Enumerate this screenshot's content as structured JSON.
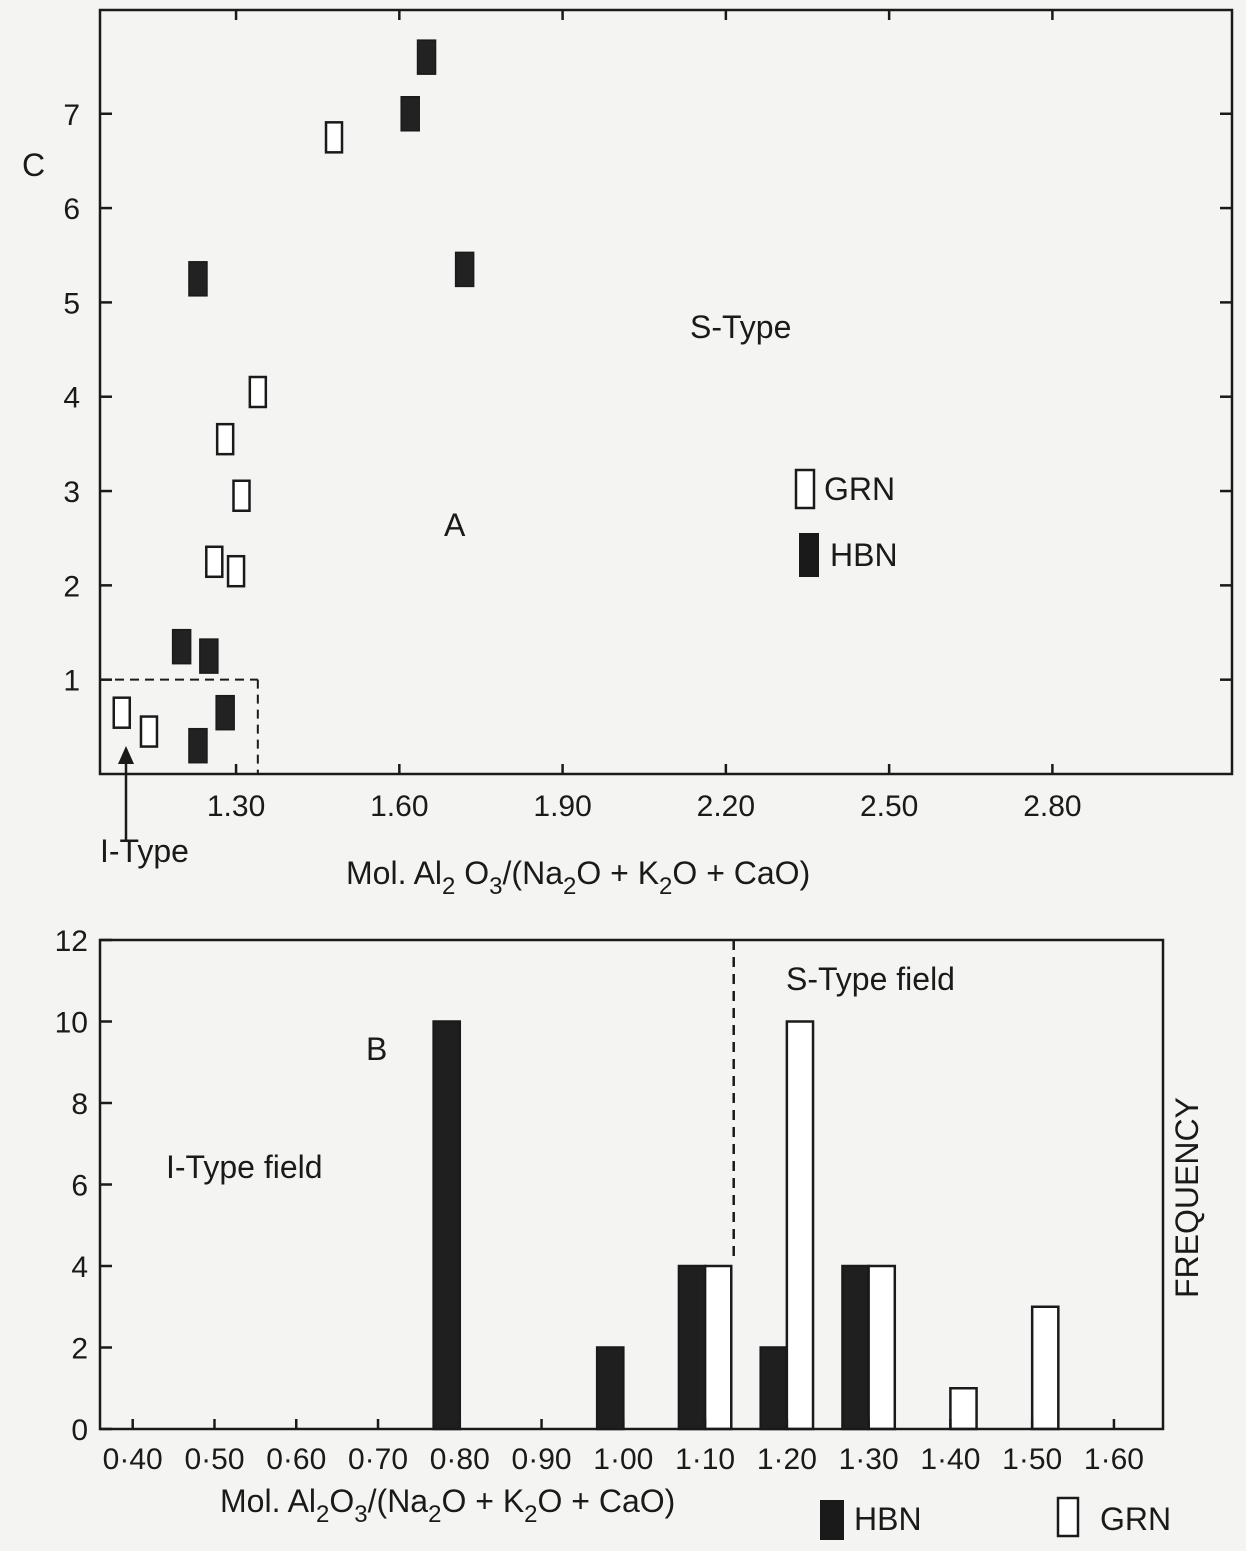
{
  "chart_data": [
    {
      "id": "A",
      "type": "scatter",
      "title": "",
      "panel_label": "A",
      "xlabel": "Mol. Al2O3/(Na2O + K2O + CaO)",
      "xlabel_parts": {
        "a": "Mol. Al",
        "s1": "2",
        "b": " O",
        "s2": "3",
        "c": "/(Na",
        "s3": "2",
        "d": "O + K",
        "s4": "2",
        "e": "O + CaO)"
      },
      "ylabel": "C",
      "xticks": [
        "1.30",
        "1.60",
        "1.90",
        "2.20",
        "2.50",
        "2.80"
      ],
      "yticks": [
        "1",
        "2",
        "3",
        "4",
        "5",
        "6",
        "7"
      ],
      "xlim": [
        1.05,
        3.13
      ],
      "ylim": [
        0,
        8.1
      ],
      "annotations": {
        "s_type": "S-Type",
        "i_type": "I-Type"
      },
      "i_type_box": {
        "x": [
          1.05,
          1.34
        ],
        "y": [
          0,
          1
        ]
      },
      "legend": [
        {
          "name": "GRN",
          "style": "open"
        },
        {
          "name": "HBN",
          "style": "filled"
        }
      ],
      "series": [
        {
          "name": "GRN",
          "points": [
            {
              "x": 1.09,
              "y": 0.65
            },
            {
              "x": 1.14,
              "y": 0.45
            },
            {
              "x": 1.26,
              "y": 2.25
            },
            {
              "x": 1.3,
              "y": 2.15
            },
            {
              "x": 1.28,
              "y": 3.55
            },
            {
              "x": 1.31,
              "y": 2.95
            },
            {
              "x": 1.34,
              "y": 4.05
            },
            {
              "x": 1.48,
              "y": 6.75
            }
          ]
        },
        {
          "name": "HBN",
          "points": [
            {
              "x": 1.2,
              "y": 1.35
            },
            {
              "x": 1.25,
              "y": 1.25
            },
            {
              "x": 1.23,
              "y": 0.3
            },
            {
              "x": 1.28,
              "y": 0.65
            },
            {
              "x": 1.23,
              "y": 5.25
            },
            {
              "x": 1.62,
              "y": 7.0
            },
            {
              "x": 1.65,
              "y": 7.6
            },
            {
              "x": 1.72,
              "y": 5.35
            }
          ]
        }
      ]
    },
    {
      "id": "B",
      "type": "bar",
      "title": "",
      "panel_label": "B",
      "xlabel": "Mol. Al2O3/(Na2O + K2O + CaO)",
      "xlabel_parts": {
        "a": "Mol. Al",
        "s1": "2",
        "b": "O",
        "s2": "3",
        "c": "/(Na",
        "s3": "2",
        "d": "O + K",
        "s4": "2",
        "e": "O + CaO)"
      },
      "ylabel": "FREQUENCY",
      "xticks": [
        "0·40",
        "0·50",
        "0·60",
        "0·70",
        "0·80",
        "0·90",
        "1·00",
        "1·10",
        "1·20",
        "1·30",
        "1·40",
        "1·50",
        "1·60"
      ],
      "xtick_values": [
        0.4,
        0.5,
        0.6,
        0.7,
        0.8,
        0.9,
        1.0,
        1.1,
        1.2,
        1.3,
        1.4,
        1.5,
        1.6
      ],
      "yticks": [
        "0",
        "2",
        "4",
        "6",
        "8",
        "10",
        "12"
      ],
      "xlim": [
        0.36,
        1.66
      ],
      "ylim": [
        0,
        12
      ],
      "divider_x": 1.135,
      "annotations": {
        "i_field": "I-Type field",
        "s_field": "S-Type field"
      },
      "legend": [
        {
          "name": "HBN",
          "style": "filled"
        },
        {
          "name": "GRN",
          "style": "open"
        }
      ],
      "series": [
        {
          "name": "HBN",
          "style": "filled",
          "bars": [
            {
              "x": 0.8,
              "value": 10
            },
            {
              "x": 1.0,
              "value": 2
            },
            {
              "x": 1.1,
              "value": 4
            },
            {
              "x": 1.2,
              "value": 2
            },
            {
              "x": 1.3,
              "value": 4
            }
          ]
        },
        {
          "name": "GRN",
          "style": "open",
          "bars": [
            {
              "x": 1.1,
              "value": 4
            },
            {
              "x": 1.2,
              "value": 10
            },
            {
              "x": 1.3,
              "value": 4
            },
            {
              "x": 1.4,
              "value": 1
            },
            {
              "x": 1.5,
              "value": 3
            }
          ]
        }
      ]
    }
  ]
}
